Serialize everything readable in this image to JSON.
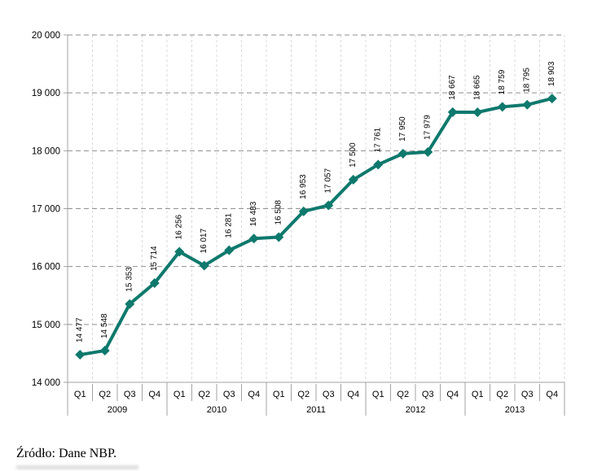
{
  "source_note": "Źródło: Dane NBP.",
  "colors": {
    "line": "#0e796d",
    "marker": "#0e796d",
    "h_grid": "#8f8f8f",
    "v_grid": "#d8d8d8",
    "axis": "#a3a3a3",
    "text": "#000000"
  },
  "chart_data": {
    "type": "line",
    "title": "",
    "xlabel": "",
    "ylabel": "",
    "categories": [
      "Q1",
      "Q2",
      "Q3",
      "Q4",
      "Q1",
      "Q2",
      "Q3",
      "Q4",
      "Q1",
      "Q2",
      "Q3",
      "Q4",
      "Q1",
      "Q2",
      "Q3",
      "Q4",
      "Q1",
      "Q2",
      "Q3",
      "Q4"
    ],
    "year_labels": [
      "2009",
      "2010",
      "2011",
      "2012",
      "2013"
    ],
    "series": [
      {
        "name": "Dane NBP",
        "values": [
          14477,
          14548,
          15353,
          15714,
          16256,
          16017,
          16281,
          16483,
          16508,
          16953,
          17057,
          17500,
          17761,
          17950,
          17979,
          18667,
          18665,
          18759,
          18795,
          18903
        ],
        "value_labels": [
          "14 477",
          "14 548",
          "15 353",
          "15 714",
          "16 256",
          "16 017",
          "16 281",
          "16 483",
          "16 508",
          "16 953",
          "17 057",
          "17 500",
          "17 761",
          "17 950",
          "17 979",
          "18 667",
          "18 665",
          "18 759",
          "18 795",
          "18 903"
        ]
      }
    ],
    "ylim": [
      14000,
      20000
    ],
    "ytick_step": 1000,
    "ytick_labels": [
      "14 000",
      "15 000",
      "16 000",
      "17 000",
      "18 000",
      "19 000",
      "20 000"
    ],
    "grid": true,
    "legend": "none",
    "marker_shape": "diamond",
    "data_labels_rotated": true
  }
}
